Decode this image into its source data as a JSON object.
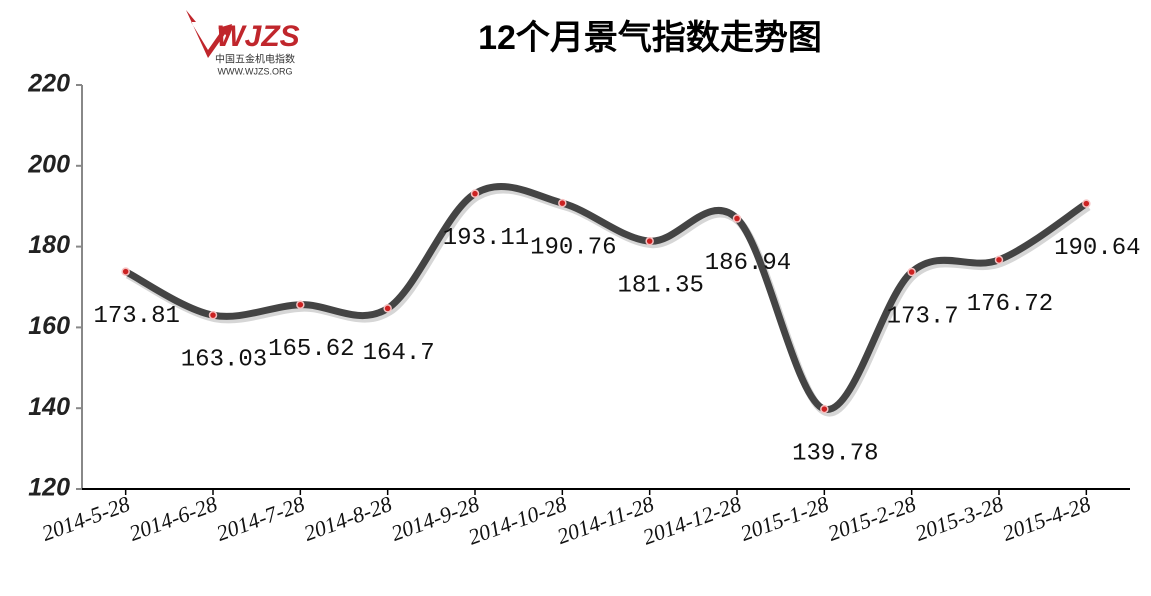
{
  "logo": {
    "mark": "WJZS",
    "name": "中国五金机电指数",
    "url": "WWW.WJZS.ORG"
  },
  "chart_data": {
    "type": "line",
    "title": "12个月景气指数走势图",
    "categories": [
      "2014-5-28",
      "2014-6-28",
      "2014-7-28",
      "2014-8-28",
      "2014-9-28",
      "2014-10-28",
      "2014-11-28",
      "2014-12-28",
      "2015-1-28",
      "2015-2-28",
      "2015-3-28",
      "2015-4-28"
    ],
    "values": [
      173.81,
      163.03,
      165.62,
      164.7,
      193.11,
      190.76,
      181.35,
      186.94,
      139.78,
      173.7,
      176.72,
      190.64
    ],
    "color": "#444444",
    "marker_color": "#cc2222",
    "ylim": [
      120,
      220
    ],
    "yticks": [
      120,
      140,
      160,
      180,
      200,
      220
    ]
  }
}
